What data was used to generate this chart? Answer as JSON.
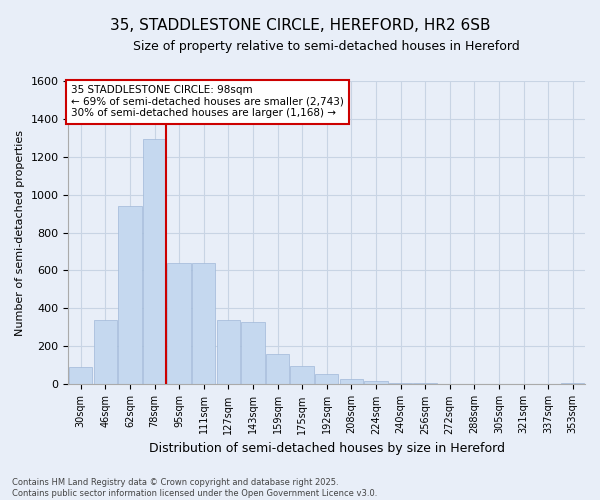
{
  "title": "35, STADDLESTONE CIRCLE, HEREFORD, HR2 6SB",
  "subtitle": "Size of property relative to semi-detached houses in Hereford",
  "xlabel": "Distribution of semi-detached houses by size in Hereford",
  "ylabel": "Number of semi-detached properties",
  "categories": [
    "30sqm",
    "46sqm",
    "62sqm",
    "78sqm",
    "95sqm",
    "111sqm",
    "127sqm",
    "143sqm",
    "159sqm",
    "175sqm",
    "192sqm",
    "208sqm",
    "224sqm",
    "240sqm",
    "256sqm",
    "272sqm",
    "288sqm",
    "305sqm",
    "321sqm",
    "337sqm",
    "353sqm"
  ],
  "values": [
    90,
    340,
    940,
    1290,
    640,
    640,
    340,
    330,
    160,
    95,
    55,
    30,
    20,
    10,
    5,
    0,
    0,
    0,
    0,
    0,
    5
  ],
  "bar_color": "#c5d8ef",
  "bar_edge_color": "#a0b8d8",
  "vline_index": 3,
  "annotation_title": "35 STADDLESTONE CIRCLE: 98sqm",
  "annotation_line1": "← 69% of semi-detached houses are smaller (2,743)",
  "annotation_line2": "30% of semi-detached houses are larger (1,168) →",
  "annotation_box_color": "#ffffff",
  "annotation_box_edge_color": "#cc0000",
  "vline_color": "#cc0000",
  "ylim": [
    0,
    1600
  ],
  "yticks": [
    0,
    200,
    400,
    600,
    800,
    1000,
    1200,
    1400,
    1600
  ],
  "grid_color": "#c8d4e4",
  "bg_color": "#e8eef8",
  "footer_line1": "Contains HM Land Registry data © Crown copyright and database right 2025.",
  "footer_line2": "Contains public sector information licensed under the Open Government Licence v3.0."
}
